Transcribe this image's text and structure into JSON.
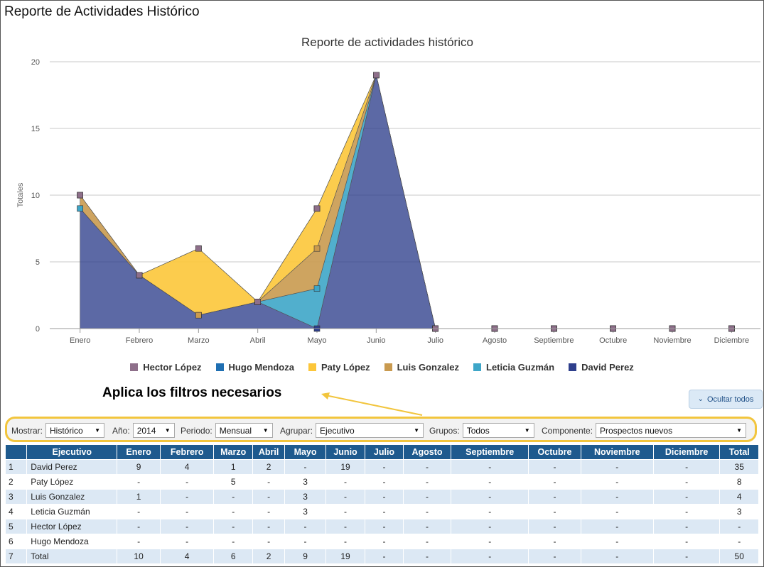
{
  "page": {
    "title": "Reporte de Actividades Histórico"
  },
  "chart_data": {
    "type": "area",
    "title": "Reporte de actividades histórico",
    "ylabel": "Totales",
    "xlabel": "",
    "ylim": [
      0,
      20
    ],
    "yticks": [
      0,
      5,
      10,
      15,
      20
    ],
    "categories": [
      "Enero",
      "Febrero",
      "Marzo",
      "Abril",
      "Mayo",
      "Junio",
      "Julio",
      "Agosto",
      "Septiembre",
      "Octubre",
      "Noviembre",
      "Diciembre"
    ],
    "stacked": true,
    "grid": true,
    "legend_position": "bottom",
    "series": [
      {
        "name": "Hector López",
        "color": "#8e6f8a",
        "values": [
          0,
          0,
          0,
          0,
          0,
          0,
          0,
          0,
          0,
          0,
          0,
          0
        ]
      },
      {
        "name": "Hugo Mendoza",
        "color": "#1f6fb2",
        "values": [
          0,
          0,
          0,
          0,
          0,
          0,
          0,
          0,
          0,
          0,
          0,
          0
        ]
      },
      {
        "name": "Paty López",
        "color": "#fcc63a",
        "values": [
          0,
          0,
          5,
          0,
          3,
          0,
          0,
          0,
          0,
          0,
          0,
          0
        ]
      },
      {
        "name": "Luis Gonzalez",
        "color": "#c99a4f",
        "values": [
          1,
          0,
          0,
          0,
          3,
          0,
          0,
          0,
          0,
          0,
          0,
          0
        ]
      },
      {
        "name": "Leticia Guzmán",
        "color": "#3ea6c8",
        "values": [
          0,
          0,
          0,
          0,
          3,
          0,
          0,
          0,
          0,
          0,
          0,
          0
        ]
      },
      {
        "name": "David Perez",
        "color": "#2e3f8c",
        "values": [
          9,
          4,
          1,
          2,
          0,
          19,
          0,
          0,
          0,
          0,
          0,
          0
        ]
      }
    ]
  },
  "annotation": {
    "text": "Aplica los filtros necesarios"
  },
  "hide_button": {
    "label": "Ocultar todos"
  },
  "filters": {
    "mostrar": {
      "label": "Mostrar:",
      "value": "Histórico"
    },
    "anio": {
      "label": "Año:",
      "value": "2014"
    },
    "periodo": {
      "label": "Periodo:",
      "value": "Mensual"
    },
    "agrupar": {
      "label": "Agrupar:",
      "value": "Ejecutivo"
    },
    "grupos": {
      "label": "Grupos:",
      "value": "Todos"
    },
    "componente": {
      "label": "Componente:",
      "value": "Prospectos nuevos"
    }
  },
  "table": {
    "headers": [
      "",
      "Ejecutivo",
      "Enero",
      "Febrero",
      "Marzo",
      "Abril",
      "Mayo",
      "Junio",
      "Julio",
      "Agosto",
      "Septiembre",
      "Octubre",
      "Noviembre",
      "Diciembre",
      "Total"
    ],
    "rows": [
      [
        "1",
        "David Perez",
        "9",
        "4",
        "1",
        "2",
        "-",
        "19",
        "-",
        "-",
        "-",
        "-",
        "-",
        "-",
        "35"
      ],
      [
        "2",
        "Paty López",
        "-",
        "-",
        "5",
        "-",
        "3",
        "-",
        "-",
        "-",
        "-",
        "-",
        "-",
        "-",
        "8"
      ],
      [
        "3",
        "Luis Gonzalez",
        "1",
        "-",
        "-",
        "-",
        "3",
        "-",
        "-",
        "-",
        "-",
        "-",
        "-",
        "-",
        "4"
      ],
      [
        "4",
        "Leticia Guzmán",
        "-",
        "-",
        "-",
        "-",
        "3",
        "-",
        "-",
        "-",
        "-",
        "-",
        "-",
        "-",
        "3"
      ],
      [
        "5",
        "Hector López",
        "-",
        "-",
        "-",
        "-",
        "-",
        "-",
        "-",
        "-",
        "-",
        "-",
        "-",
        "-",
        "-"
      ],
      [
        "6",
        "Hugo Mendoza",
        "-",
        "-",
        "-",
        "-",
        "-",
        "-",
        "-",
        "-",
        "-",
        "-",
        "-",
        "-",
        "-"
      ],
      [
        "7",
        "Total",
        "10",
        "4",
        "6",
        "2",
        "9",
        "19",
        "-",
        "-",
        "-",
        "-",
        "-",
        "-",
        "50"
      ]
    ]
  }
}
